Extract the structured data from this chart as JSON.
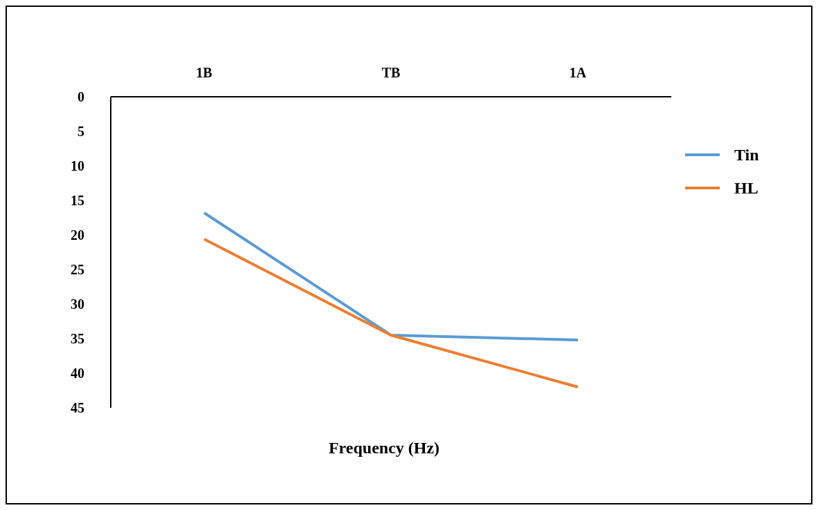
{
  "chart_data": {
    "type": "line",
    "xlabel": "Frequency (Hz)",
    "categories": [
      "1B",
      "TB",
      "1A"
    ],
    "series": [
      {
        "name": "Tin",
        "color": "#5b9bd5",
        "values": [
          16.8,
          34.5,
          35.2
        ]
      },
      {
        "name": "HL",
        "color": "#ed7d31",
        "values": [
          20.6,
          34.5,
          42.0
        ]
      }
    ],
    "ylim": [
      45,
      0
    ],
    "yticks": [
      0,
      5,
      10,
      15,
      20,
      25,
      30,
      35,
      40,
      45
    ],
    "grid": false,
    "legend": "right",
    "marker": "none",
    "line_style": "solid"
  }
}
